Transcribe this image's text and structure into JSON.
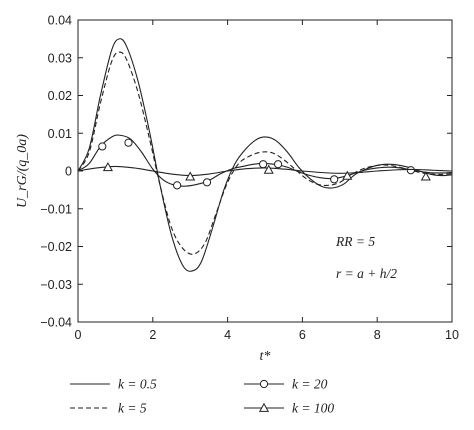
{
  "chart_data": {
    "type": "line",
    "xlabel": "t*",
    "ylabel": "U_rG/(q_0a)",
    "xlim": [
      0,
      10
    ],
    "ylim": [
      -0.04,
      0.04
    ],
    "x_ticks": [
      "0",
      "2",
      "4",
      "6",
      "8",
      "10"
    ],
    "y_ticks": [
      "0.04",
      "0.03",
      "0.02",
      "0.01",
      "0",
      "−0.01",
      "−0.02",
      "−0.03",
      "−0.04"
    ],
    "grid": false,
    "legend_position": "bottom",
    "annotations": [
      "RR = 5",
      "r = a + h/2"
    ],
    "series": [
      {
        "name": "k = 0.5",
        "style": "solid",
        "marker": "none",
        "x": [
          0,
          0.3,
          0.6,
          0.9,
          1.1,
          1.3,
          1.6,
          1.9,
          2.2,
          2.5,
          2.8,
          3.05,
          3.3,
          3.6,
          3.9,
          4.2,
          4.5,
          4.8,
          5.05,
          5.3,
          5.6,
          5.9,
          6.2,
          6.5,
          6.8,
          7.1,
          7.4,
          7.7,
          8.0,
          8.3,
          8.6,
          8.9,
          9.2,
          9.5,
          9.8,
          10
        ],
        "y": [
          0,
          0.006,
          0.02,
          0.032,
          0.035,
          0.033,
          0.024,
          0.011,
          -0.004,
          -0.017,
          -0.025,
          -0.0265,
          -0.024,
          -0.015,
          -0.005,
          0.002,
          0.006,
          0.0085,
          0.009,
          0.008,
          0.005,
          0.001,
          -0.002,
          -0.004,
          -0.0045,
          -0.0035,
          -0.001,
          0.0005,
          0.0015,
          0.0018,
          0.0015,
          0.0008,
          -0.0002,
          -0.001,
          -0.0012,
          -0.001
        ]
      },
      {
        "name": "k = 5",
        "style": "dashed",
        "marker": "none",
        "x": [
          0,
          0.3,
          0.6,
          0.9,
          1.1,
          1.3,
          1.6,
          1.9,
          2.2,
          2.5,
          2.8,
          3.1,
          3.4,
          3.7,
          4.0,
          4.3,
          4.6,
          4.9,
          5.2,
          5.5,
          5.8,
          6.1,
          6.4,
          6.7,
          7.0,
          7.3,
          7.6,
          7.9,
          8.2,
          8.5,
          8.8,
          9.1,
          9.4,
          9.7,
          10
        ],
        "y": [
          0,
          0.005,
          0.018,
          0.029,
          0.0315,
          0.0295,
          0.021,
          0.009,
          -0.004,
          -0.015,
          -0.0205,
          -0.022,
          -0.019,
          -0.011,
          -0.003,
          0.002,
          0.004,
          0.005,
          0.0048,
          0.003,
          0.0005,
          -0.002,
          -0.0035,
          -0.0038,
          -0.003,
          -0.001,
          0.0005,
          0.0013,
          0.0016,
          0.0012,
          0.0005,
          -0.0003,
          -0.0008,
          -0.0009,
          -0.0007
        ]
      },
      {
        "name": "k = 20",
        "style": "solid",
        "marker": "circle",
        "x": [
          0,
          0.3,
          0.6,
          0.9,
          1.1,
          1.4,
          1.7,
          2.0,
          2.3,
          2.6,
          2.9,
          3.2,
          3.5,
          3.8,
          4.1,
          4.4,
          4.7,
          5.0,
          5.3,
          5.6,
          5.9,
          6.2,
          6.5,
          6.8,
          7.1,
          7.4,
          7.7,
          8.0,
          8.3,
          8.6,
          8.9,
          9.2,
          9.5,
          9.8,
          10
        ],
        "y": [
          0,
          0.002,
          0.0065,
          0.009,
          0.0095,
          0.0085,
          0.005,
          0.0005,
          -0.0025,
          -0.0038,
          -0.004,
          -0.0035,
          -0.0025,
          -0.0008,
          0.0005,
          0.0012,
          0.0018,
          0.002,
          0.0017,
          0.001,
          -0.0002,
          -0.0012,
          -0.0018,
          -0.002,
          -0.0015,
          -0.0006,
          0.0003,
          0.0008,
          0.001,
          0.0008,
          0.0003,
          -0.0002,
          -0.0005,
          -0.0005,
          -0.0004
        ],
        "marker_points": [
          [
            0.65,
            0.0065
          ],
          [
            1.35,
            0.0075
          ],
          [
            2.65,
            -0.0038
          ],
          [
            3.45,
            -0.003
          ],
          [
            4.95,
            0.0018
          ],
          [
            5.35,
            0.0018
          ],
          [
            6.85,
            -0.0022
          ],
          [
            8.9,
            0.0002
          ]
        ]
      },
      {
        "name": "k = 100",
        "style": "solid",
        "marker": "triangle",
        "x": [
          0,
          0.5,
          1.0,
          1.5,
          2.0,
          2.5,
          3.0,
          3.5,
          4.0,
          4.5,
          5.0,
          5.5,
          6.0,
          6.5,
          7.0,
          7.5,
          8.0,
          8.5,
          9.0,
          9.5,
          10
        ],
        "y": [
          0,
          0.0008,
          0.0012,
          0.0008,
          0,
          -0.0008,
          -0.0012,
          -0.0008,
          0,
          0.0006,
          0.0008,
          0.0005,
          0,
          -0.0004,
          -0.0006,
          -0.0004,
          0,
          0.0003,
          0.0004,
          0.0002,
          0
        ],
        "marker_points": [
          [
            0.8,
            0.001
          ],
          [
            3.0,
            -0.0015
          ],
          [
            5.1,
            0.0003
          ],
          [
            7.2,
            -0.0013
          ],
          [
            9.3,
            -0.0015
          ]
        ]
      }
    ]
  }
}
